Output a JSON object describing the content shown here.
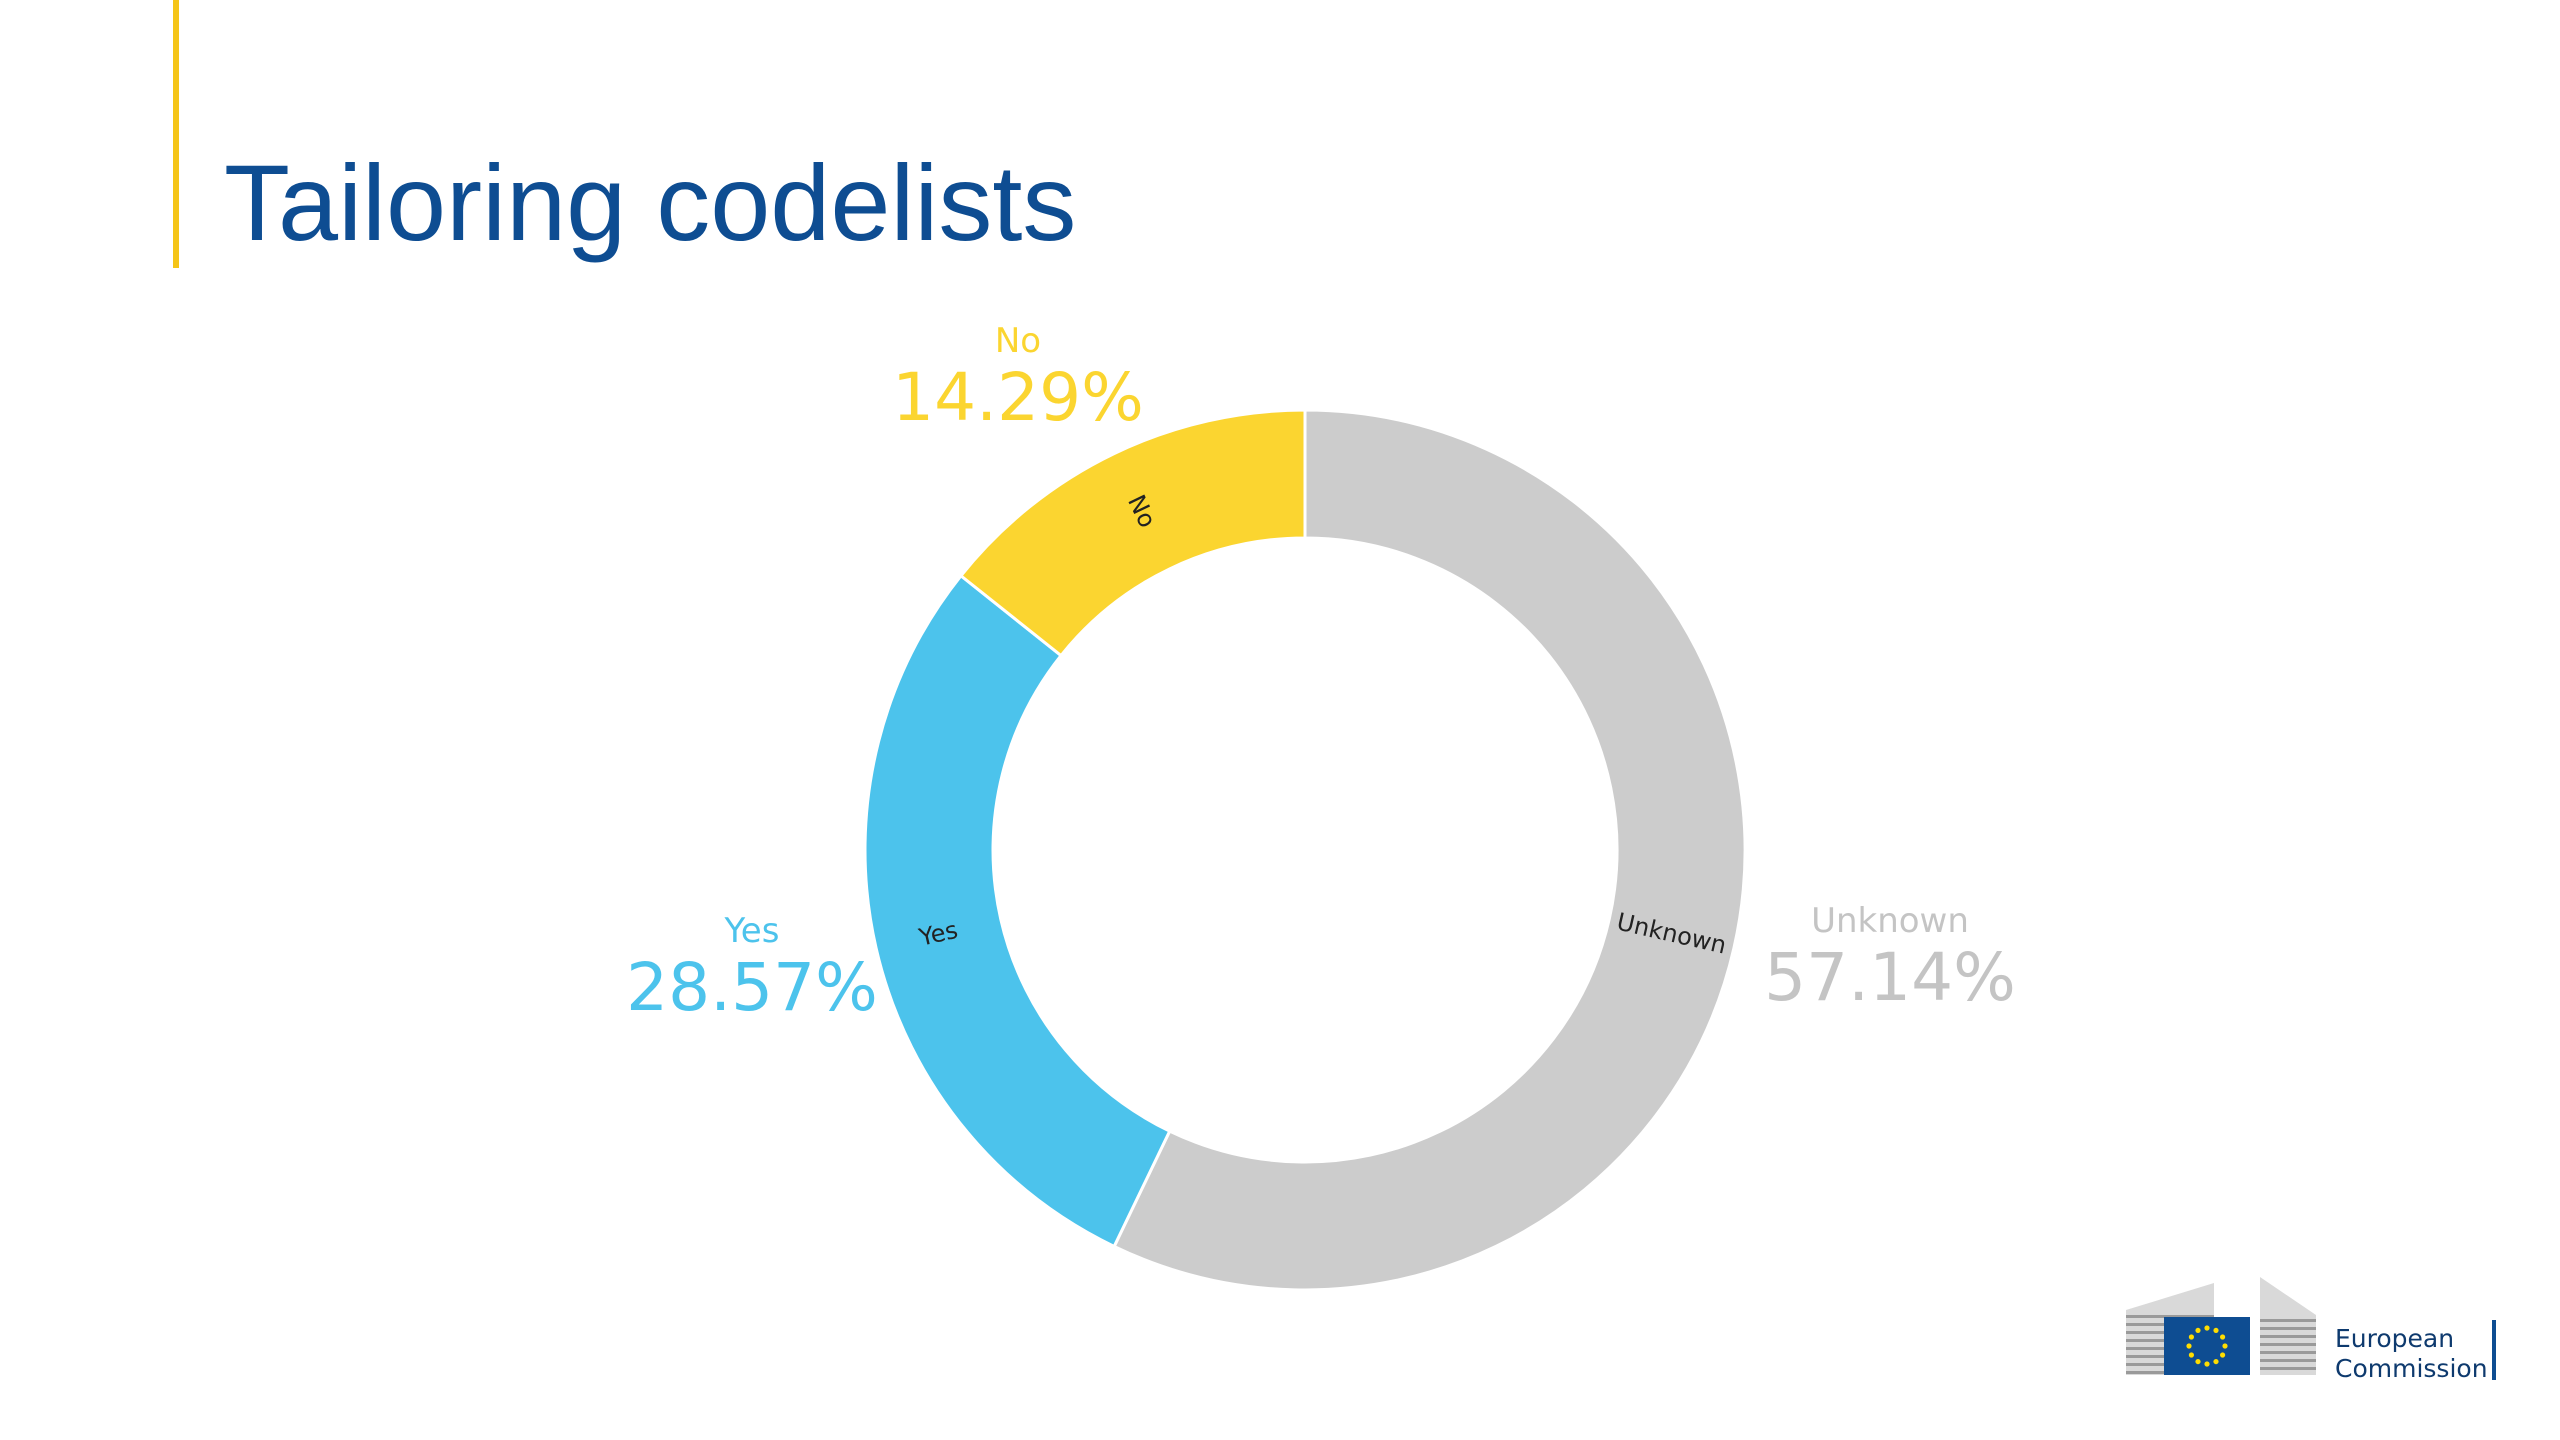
{
  "slide": {
    "title": "Tailoring codelists"
  },
  "chart_data": {
    "type": "pie",
    "variant": "donut",
    "series": [
      {
        "name": "Unknown",
        "value": 57.14,
        "percent_label": "57.14%",
        "color": "#cccccc"
      },
      {
        "name": "Yes",
        "value": 28.57,
        "percent_label": "28.57%",
        "color": "#4cc3ec"
      },
      {
        "name": "No",
        "value": 14.29,
        "percent_label": "14.29%",
        "color": "#fbd530"
      }
    ],
    "start": "12 o'clock",
    "direction": "clockwise"
  },
  "logo": {
    "line1": "European",
    "line2": "Commission",
    "colors": {
      "flag": "#0e4d92",
      "stars": "#ffdd00"
    }
  }
}
